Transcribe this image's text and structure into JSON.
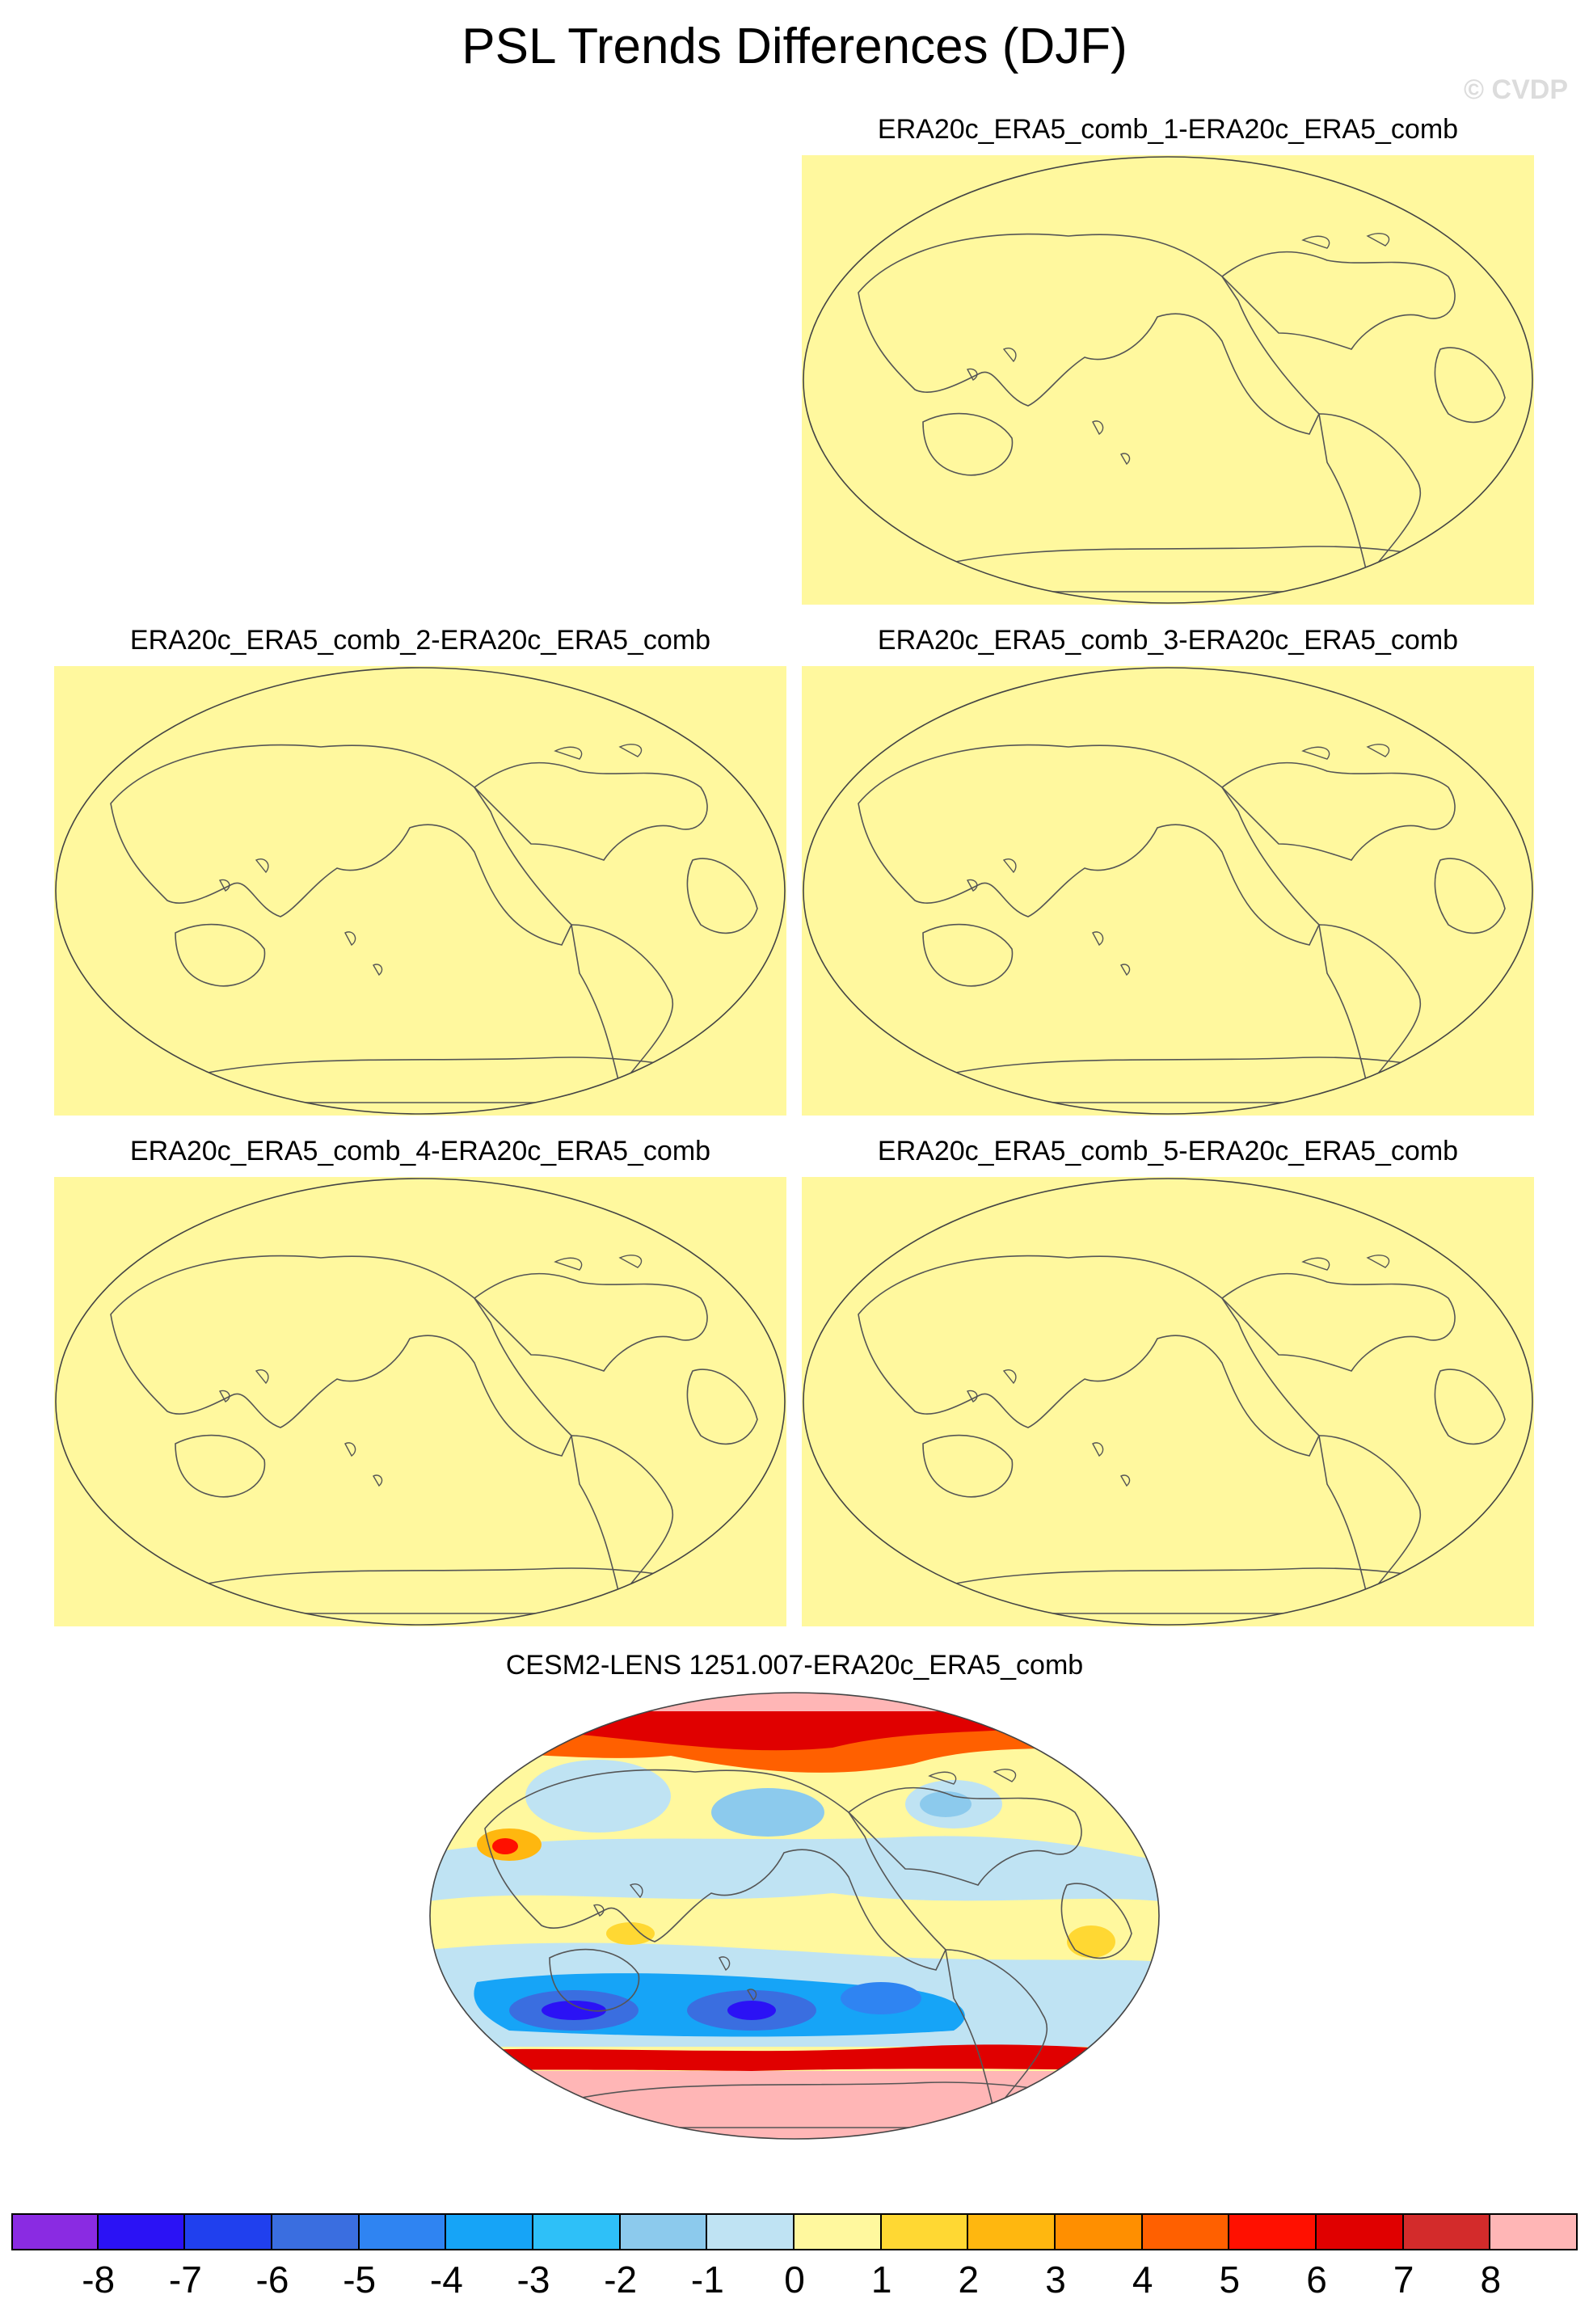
{
  "title": "PSL Trends Differences (DJF)",
  "watermark": "© CVDP",
  "panels": [
    {
      "title": "ERA20c_ERA5_comb_1-ERA20c_ERA5_comb",
      "fill": "#fff89e"
    },
    {
      "title": "ERA20c_ERA5_comb_2-ERA20c_ERA5_comb",
      "fill": "#fff89e"
    },
    {
      "title": "ERA20c_ERA5_comb_3-ERA20c_ERA5_comb",
      "fill": "#fff89e"
    },
    {
      "title": "ERA20c_ERA5_comb_4-ERA20c_ERA5_comb",
      "fill": "#fff89e"
    },
    {
      "title": "ERA20c_ERA5_comb_5-ERA20c_ERA5_comb",
      "fill": "#fff89e"
    },
    {
      "title": "CESM2-LENS 1251.007-ERA20c_ERA5_comb",
      "fill": "#fff89e"
    }
  ],
  "colorbar": {
    "labels": [
      "-8",
      "-7",
      "-6",
      "-5",
      "-4",
      "-3",
      "-2",
      "-1",
      "0",
      "1",
      "2",
      "3",
      "4",
      "5",
      "6",
      "7",
      "8"
    ],
    "colors": [
      "#8a2be2",
      "#2b12f5",
      "#2040ee",
      "#3a6ee0",
      "#2f84f2",
      "#16a4f7",
      "#2ec0f8",
      "#8ccaed",
      "#bfe3f3",
      "#fff89e",
      "#ffd833",
      "#ffb70f",
      "#ff8f00",
      "#ff6000",
      "#ff1000",
      "#e00000",
      "#d32b2b",
      "#ffb6b6"
    ]
  }
}
